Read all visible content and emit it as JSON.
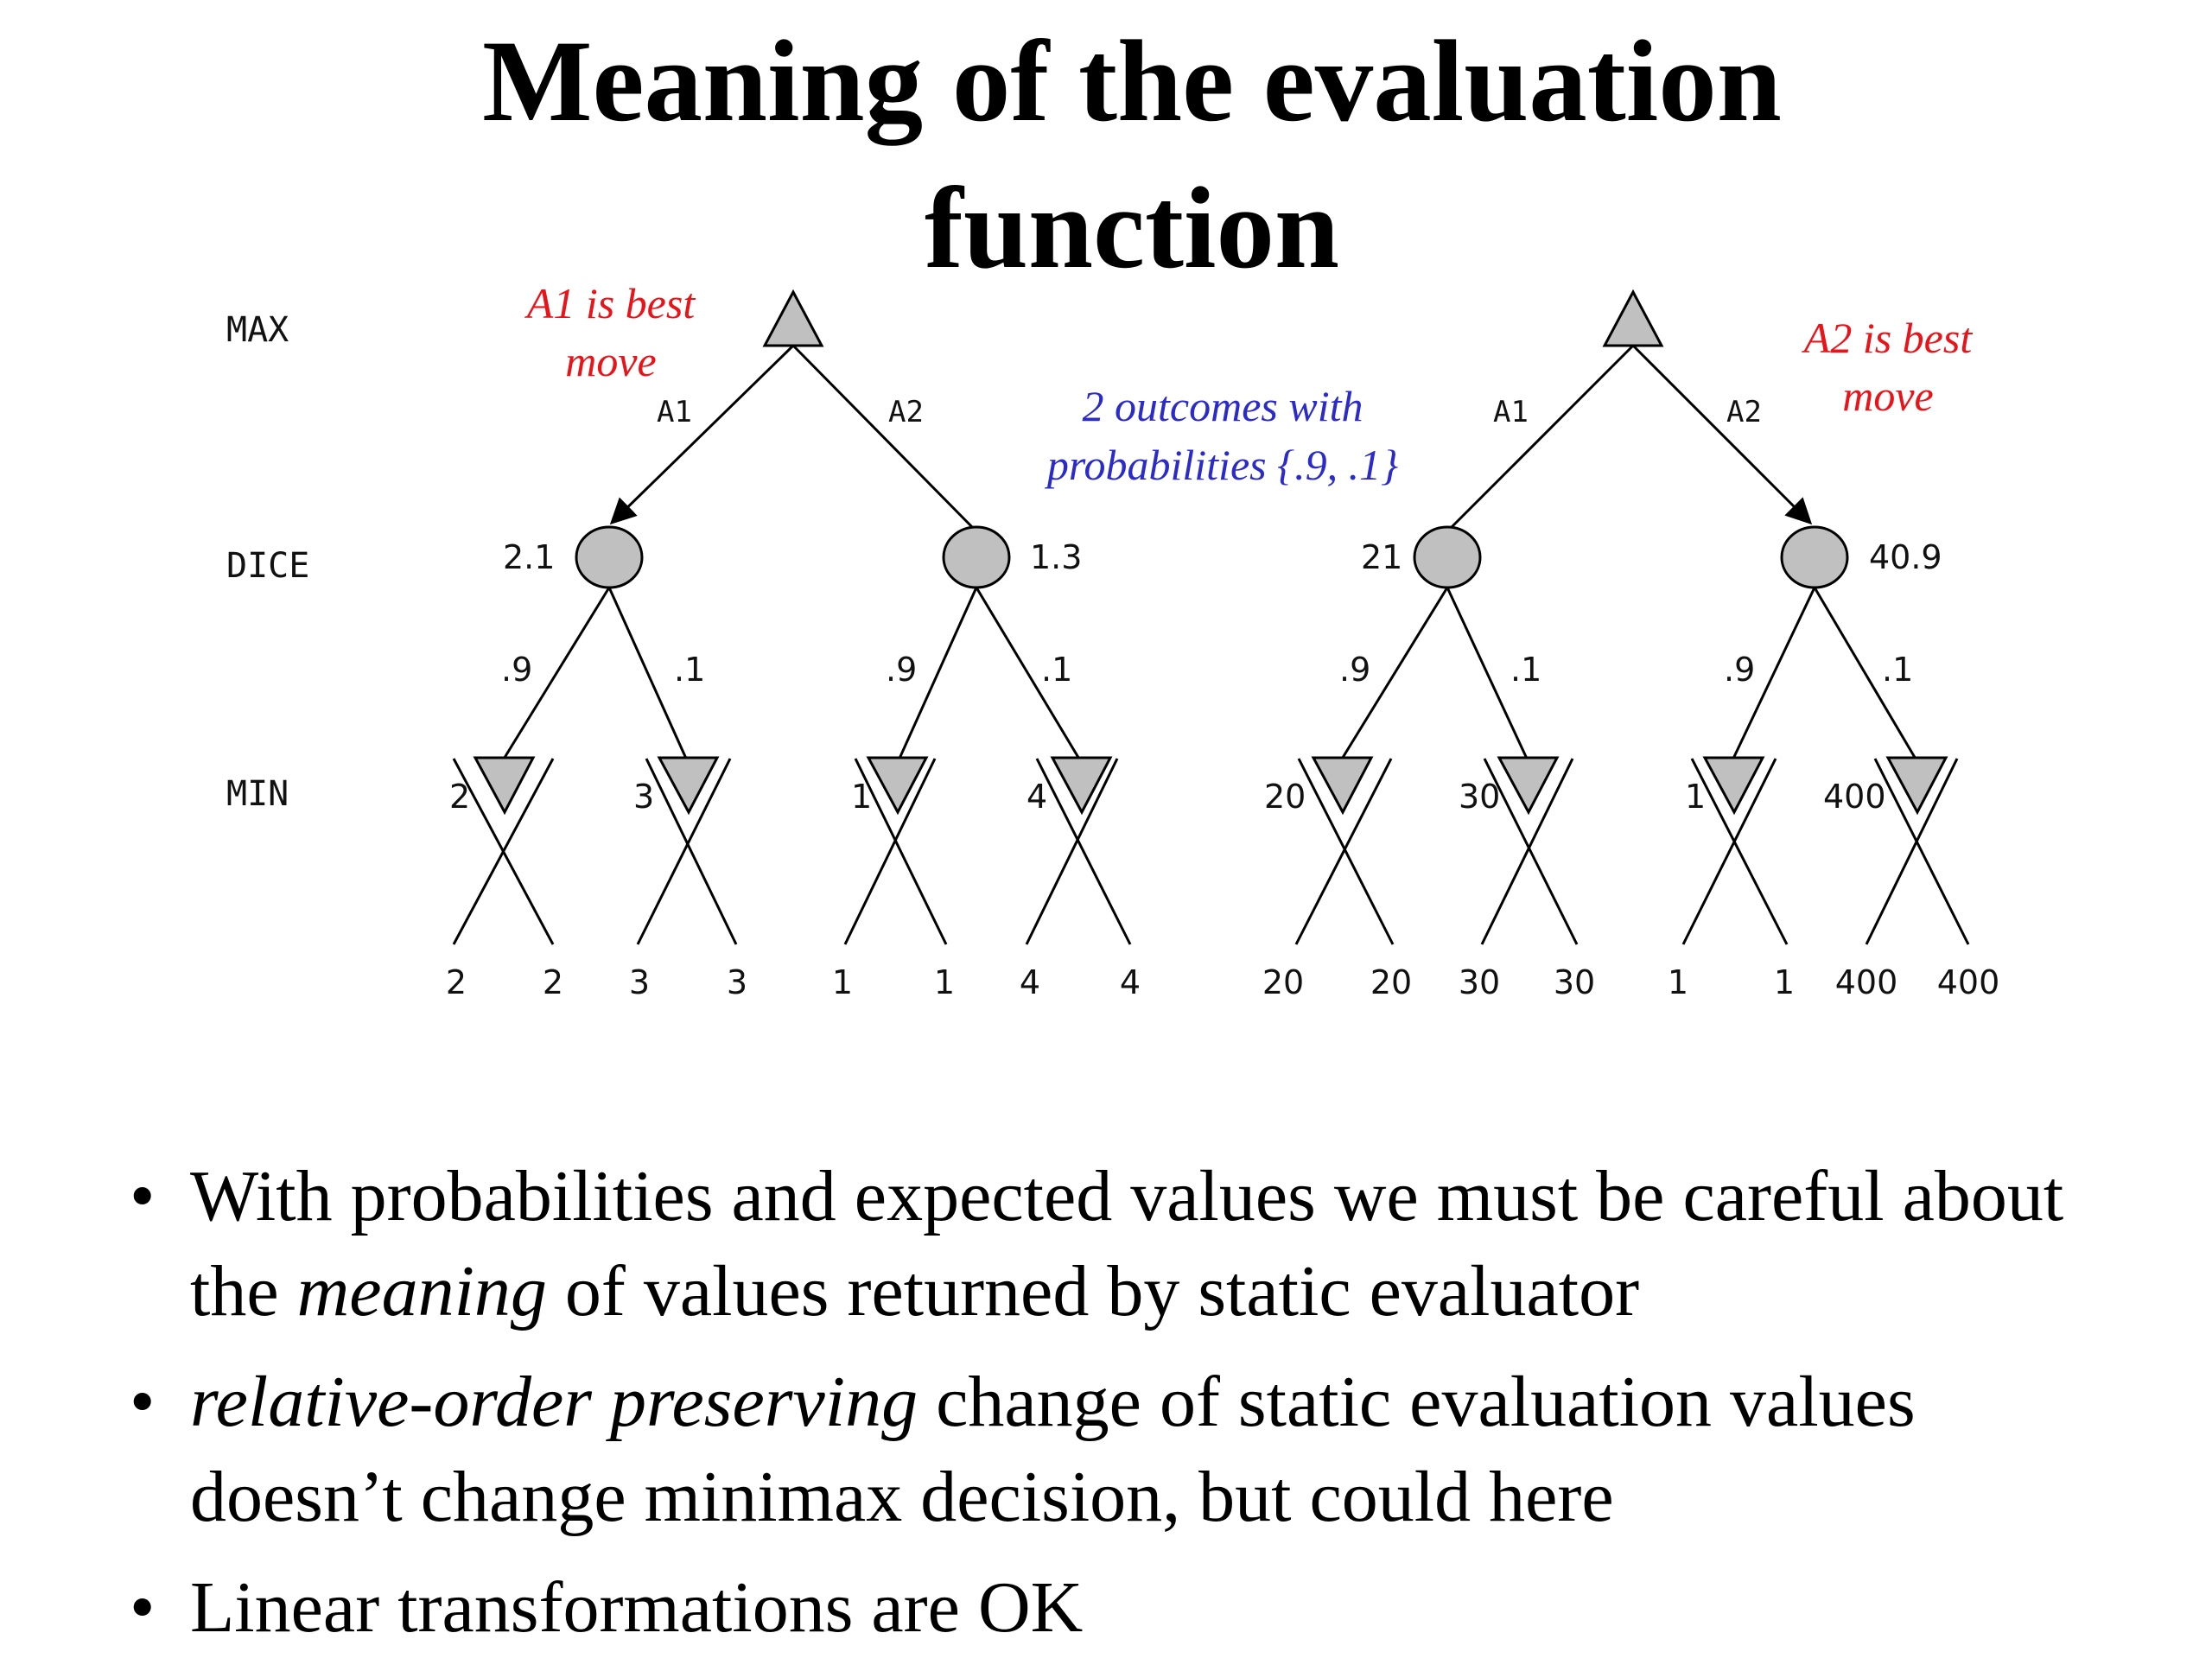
{
  "title_line1": "Meaning of the evaluation",
  "title_line2": "function",
  "levels": {
    "max": "MAX",
    "dice": "DICE",
    "min": "MIN"
  },
  "annotations": {
    "left_best_line1": "A1 is best",
    "left_best_line2": "move",
    "right_best_line1": "A2 is best",
    "right_best_line2": "move",
    "outcomes_line1": "2 outcomes with",
    "outcomes_line2": "probabilities  {.9, .1}"
  },
  "left_tree": {
    "actions": [
      "A1",
      "A2"
    ],
    "dice_values": [
      "2.1",
      "1.3"
    ],
    "probabilities": [
      ".9",
      ".1",
      ".9",
      ".1"
    ],
    "min_values": [
      "2",
      "3",
      "1",
      "4"
    ],
    "leaf_values": [
      "2",
      "2",
      "3",
      "3",
      "1",
      "1",
      "4",
      "4"
    ]
  },
  "right_tree": {
    "actions": [
      "A1",
      "A2"
    ],
    "dice_values": [
      "21",
      "40.9"
    ],
    "probabilities": [
      ".9",
      ".1",
      ".9",
      ".1"
    ],
    "min_values": [
      "20",
      "30",
      "1",
      "400"
    ],
    "leaf_values": [
      "20",
      "20",
      "30",
      "30",
      "1",
      "1",
      "400",
      "400"
    ]
  },
  "colors": {
    "node_fill": "#c0c0c0",
    "best_move_note": "#e8141a",
    "outcomes_note": "#2b2bc9"
  },
  "bullets": [
    {
      "parts": [
        {
          "text": "With probabilities and expected values we must be careful about the ",
          "italic": false
        },
        {
          "text": "meaning",
          "italic": true
        },
        {
          "text": " of values returned by static evaluator",
          "italic": false
        }
      ]
    },
    {
      "parts": [
        {
          "text": "relative-order preserving",
          "italic": true
        },
        {
          "text": " change of static evaluation values doesn’t change minimax decision, but could here",
          "italic": false
        }
      ]
    },
    {
      "parts": [
        {
          "text": "Linear transformations are OK",
          "italic": false
        }
      ]
    }
  ]
}
